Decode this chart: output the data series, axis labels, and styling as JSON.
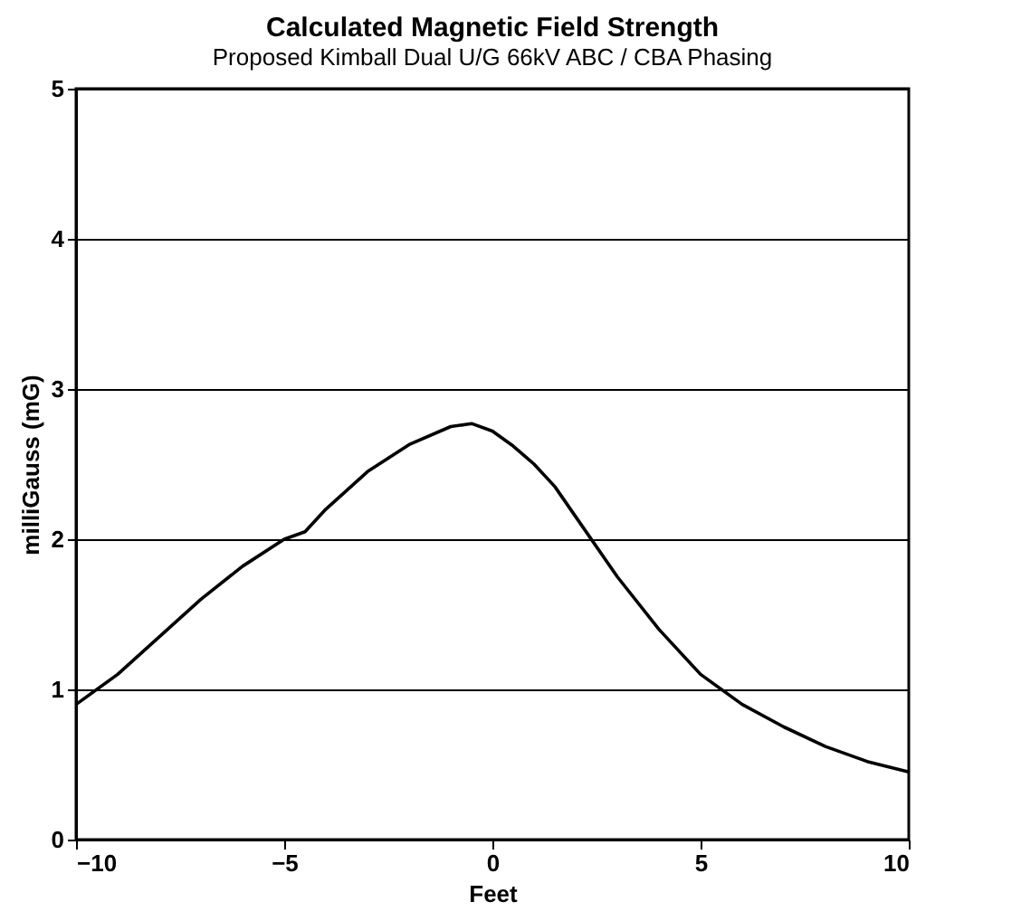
{
  "chart_data": {
    "type": "line",
    "title": "Calculated Magnetic Field Strength",
    "subtitle": "Proposed Kimball Dual U/G 66kV ABC / CBA Phasing",
    "xlabel": "Feet",
    "ylabel": "milliGauss (mG)",
    "x": [
      -10,
      -9,
      -8,
      -7,
      -6,
      -5,
      -4.5,
      -4,
      -3,
      -2,
      -1,
      -0.5,
      0,
      0.5,
      1,
      1.5,
      2,
      3,
      4,
      5,
      6,
      7,
      8,
      9,
      10
    ],
    "series": [
      {
        "color": "#000000",
        "values": [
          0.9,
          1.1,
          1.35,
          1.6,
          1.82,
          2.0,
          2.05,
          2.2,
          2.45,
          2.63,
          2.75,
          2.77,
          2.72,
          2.62,
          2.5,
          2.35,
          2.15,
          1.75,
          1.4,
          1.1,
          0.9,
          0.75,
          0.62,
          0.52,
          0.45
        ]
      }
    ],
    "xlim": [
      -10,
      10
    ],
    "xticks": [
      -10,
      -5,
      0,
      5,
      10
    ],
    "ylim": [
      0,
      5
    ],
    "yticks": [
      0,
      1,
      2,
      3,
      4,
      5
    ],
    "grid": "y",
    "legend": false,
    "marker": "none",
    "line_style": "solid"
  }
}
